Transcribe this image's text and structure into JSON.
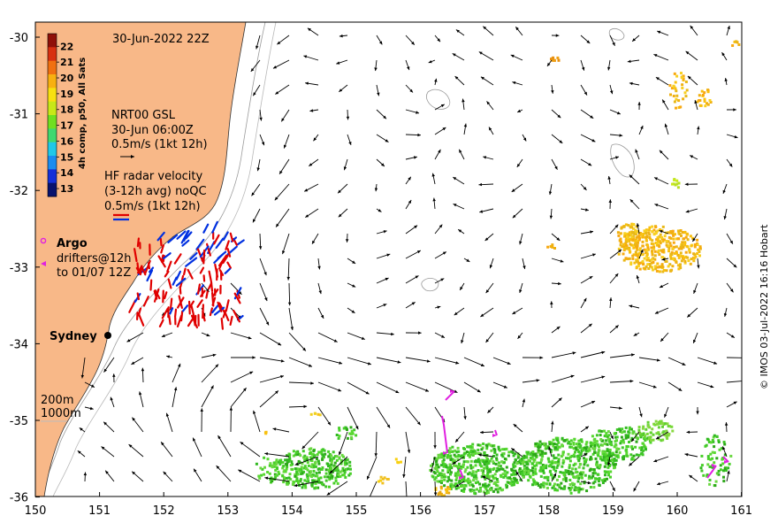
{
  "map": {
    "timestamp": "30-Jun-2022 22Z",
    "x_ticks": [
      "150",
      "151",
      "152",
      "153",
      "154",
      "155",
      "156",
      "157",
      "158",
      "159",
      "160",
      "161"
    ],
    "y_ticks": [
      "-30",
      "-31",
      "-32",
      "-33",
      "-34",
      "-35",
      "-36"
    ],
    "lon_range": [
      150,
      161
    ],
    "lat_range": [
      -36,
      -29.8
    ],
    "land_color": "#f8b888",
    "city_label": "Sydney"
  },
  "colorbar": {
    "title": "4h comp, p50, All Sats",
    "ticks": [
      "22",
      "21",
      "20",
      "19",
      "18",
      "17",
      "16",
      "15",
      "14",
      "13"
    ],
    "range": [
      12.5,
      22.8
    ],
    "colors": [
      "#08126e",
      "#1530d8",
      "#1a8cf0",
      "#20c8e8",
      "#40d870",
      "#70e020",
      "#c8e818",
      "#f8e010",
      "#f8b010",
      "#f07010",
      "#d83010",
      "#901008"
    ]
  },
  "legends": {
    "nrt": {
      "line1": "NRT00 GSL",
      "line2": "30-Jun 06:00Z",
      "line3": "0.5m/s (1kt 12h)"
    },
    "hf": {
      "line1": "HF radar velocity",
      "line2": "(3-12h avg) noQC",
      "line3": "0.5m/s (1kt 12h)"
    },
    "argo": "Argo",
    "drifters_line1": "drifters@12h",
    "drifters_line2": "to 01/07 12Z",
    "depth_200": "200m",
    "depth_1000": "1000m"
  },
  "credit": "© IMOS 03-Jul-2022 16:16 Hobart"
}
